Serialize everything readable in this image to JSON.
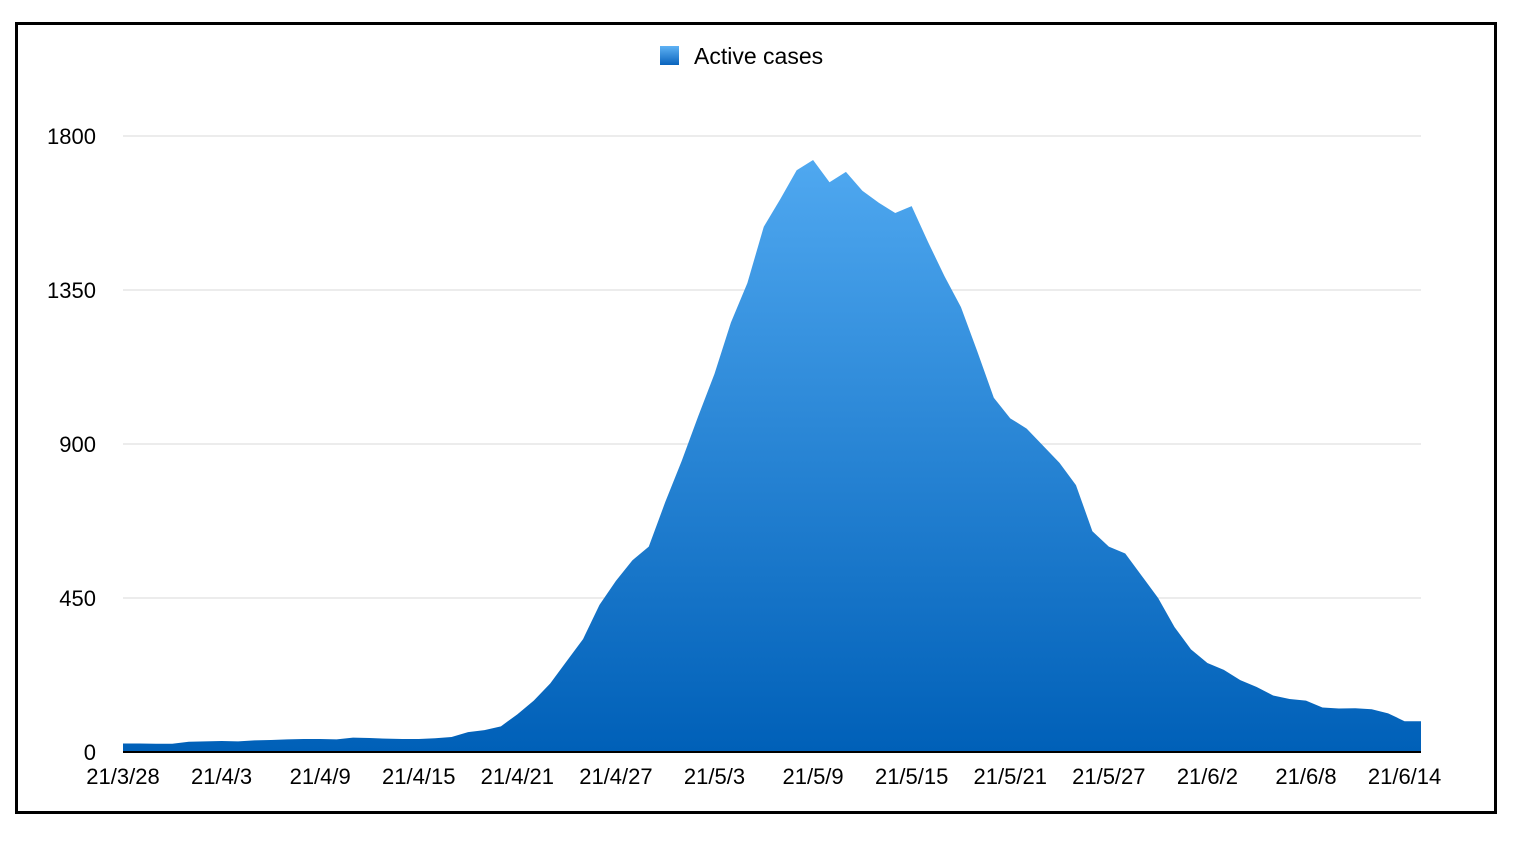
{
  "chart_data": {
    "type": "area",
    "title": "",
    "xlabel": "",
    "ylabel": "",
    "legend_position": "top-center",
    "grid": true,
    "ylim": [
      0,
      1800
    ],
    "yticks": [
      "0",
      "450",
      "900",
      "1350",
      "1800"
    ],
    "xtick_labels": [
      "21/3/28",
      "21/4/3",
      "21/4/9",
      "21/4/15",
      "21/4/21",
      "21/4/27",
      "21/5/3",
      "21/5/9",
      "21/5/15",
      "21/5/21",
      "21/5/27",
      "21/6/2",
      "21/6/8",
      "21/6/14"
    ],
    "colors": {
      "fill_top": "#4fa8f0",
      "fill_bottom": "#0060b8",
      "legend_swatch": "#2a86dc",
      "grid": "#d9d9d9",
      "axis": "#000000"
    },
    "series": [
      {
        "name": "Active cases",
        "x": [
          "21/3/28",
          "21/3/29",
          "21/3/30",
          "21/3/31",
          "21/4/1",
          "21/4/2",
          "21/4/3",
          "21/4/4",
          "21/4/5",
          "21/4/6",
          "21/4/7",
          "21/4/8",
          "21/4/9",
          "21/4/10",
          "21/4/11",
          "21/4/12",
          "21/4/13",
          "21/4/14",
          "21/4/15",
          "21/4/16",
          "21/4/17",
          "21/4/18",
          "21/4/19",
          "21/4/20",
          "21/4/21",
          "21/4/22",
          "21/4/23",
          "21/4/24",
          "21/4/25",
          "21/4/26",
          "21/4/27",
          "21/4/28",
          "21/4/29",
          "21/4/30",
          "21/5/1",
          "21/5/2",
          "21/5/3",
          "21/5/4",
          "21/5/5",
          "21/5/6",
          "21/5/7",
          "21/5/8",
          "21/5/9",
          "21/5/10",
          "21/5/11",
          "21/5/12",
          "21/5/13",
          "21/5/14",
          "21/5/15",
          "21/5/16",
          "21/5/17",
          "21/5/18",
          "21/5/19",
          "21/5/20",
          "21/5/21",
          "21/5/22",
          "21/5/23",
          "21/5/24",
          "21/5/25",
          "21/5/26",
          "21/5/27",
          "21/5/28",
          "21/5/29",
          "21/5/30",
          "21/5/31",
          "21/6/1",
          "21/6/2",
          "21/6/3",
          "21/6/4",
          "21/6/5",
          "21/6/6",
          "21/6/7",
          "21/6/8",
          "21/6/9",
          "21/6/10",
          "21/6/11",
          "21/6/12",
          "21/6/13",
          "21/6/14",
          "21/6/15"
        ],
        "values": [
          25,
          25,
          24,
          24,
          30,
          31,
          32,
          31,
          34,
          35,
          37,
          38,
          38,
          37,
          42,
          41,
          39,
          38,
          38,
          40,
          44,
          58,
          64,
          75,
          110,
          150,
          200,
          265,
          330,
          430,
          500,
          560,
          600,
          730,
          850,
          980,
          1105,
          1255,
          1370,
          1535,
          1615,
          1700,
          1730,
          1665,
          1695,
          1640,
          1605,
          1575,
          1595,
          1490,
          1390,
          1300,
          1170,
          1035,
          975,
          945,
          895,
          845,
          780,
          645,
          600,
          580,
          515,
          450,
          365,
          300,
          260,
          240,
          210,
          190,
          165,
          155,
          150,
          130,
          127,
          128,
          125,
          113,
          90,
          90
        ]
      }
    ]
  }
}
